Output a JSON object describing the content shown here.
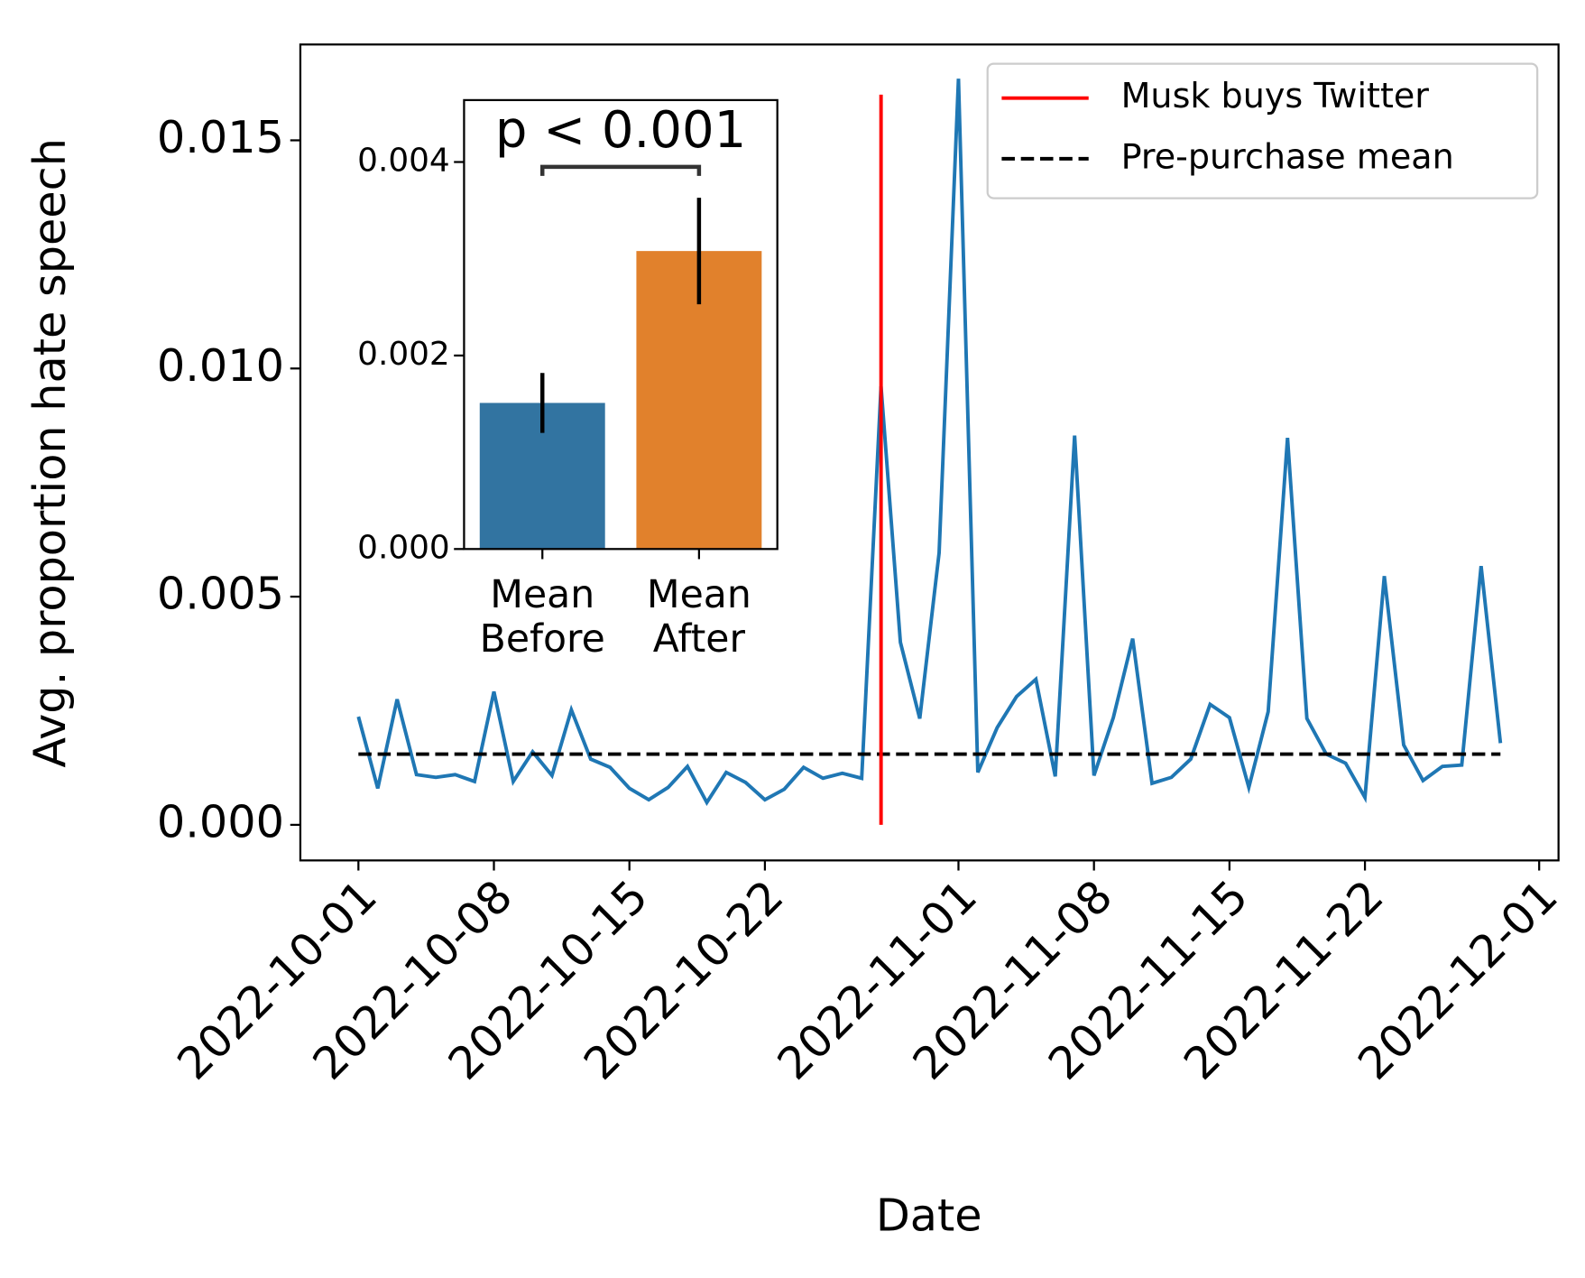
{
  "chart_data": [
    {
      "type": "line",
      "x_label": "Date",
      "y_label": "Avg. proportion hate speech",
      "x": [
        "2022-10-01",
        "2022-10-02",
        "2022-10-03",
        "2022-10-04",
        "2022-10-05",
        "2022-10-06",
        "2022-10-07",
        "2022-10-08",
        "2022-10-09",
        "2022-10-10",
        "2022-10-11",
        "2022-10-12",
        "2022-10-13",
        "2022-10-14",
        "2022-10-15",
        "2022-10-16",
        "2022-10-17",
        "2022-10-18",
        "2022-10-19",
        "2022-10-20",
        "2022-10-21",
        "2022-10-22",
        "2022-10-23",
        "2022-10-24",
        "2022-10-25",
        "2022-10-26",
        "2022-10-27",
        "2022-10-28",
        "2022-10-29",
        "2022-10-30",
        "2022-10-31",
        "2022-11-01",
        "2022-11-02",
        "2022-11-03",
        "2022-11-04",
        "2022-11-05",
        "2022-11-06",
        "2022-11-07",
        "2022-11-08",
        "2022-11-09",
        "2022-11-10",
        "2022-11-11",
        "2022-11-12",
        "2022-11-13",
        "2022-11-14",
        "2022-11-15",
        "2022-11-16",
        "2022-11-17",
        "2022-11-18",
        "2022-11-19",
        "2022-11-20",
        "2022-11-21",
        "2022-11-22",
        "2022-11-23",
        "2022-11-24",
        "2022-11-25",
        "2022-11-26",
        "2022-11-27",
        "2022-11-28",
        "2022-11-29"
      ],
      "series": [
        {
          "color": "#1f77b4",
          "values": [
            0.00237,
            0.0008,
            0.00275,
            0.0011,
            0.00104,
            0.0011,
            0.00095,
            0.00292,
            0.00095,
            0.0016,
            0.00108,
            0.00252,
            0.00144,
            0.00126,
            0.0008,
            0.00055,
            0.00082,
            0.00128,
            0.00049,
            0.00115,
            0.00093,
            0.00055,
            0.00078,
            0.00126,
            0.00102,
            0.00113,
            0.00102,
            0.00961,
            0.004,
            0.00233,
            0.00596,
            0.01635,
            0.00115,
            0.00213,
            0.00281,
            0.00319,
            0.00106,
            0.00853,
            0.00108,
            0.00235,
            0.00408,
            0.00091,
            0.00104,
            0.00144,
            0.00264,
            0.00235,
            0.00082,
            0.00248,
            0.00848,
            0.00233,
            0.00155,
            0.00135,
            0.0006,
            0.00545,
            0.00175,
            0.00097,
            0.00128,
            0.00131,
            0.00567,
            0.00179
          ]
        }
      ],
      "vline": {
        "label": "Musk buys Twitter",
        "x": "2022-10-28",
        "y": [
          0,
          0.016
        ],
        "color": "#ff0000"
      },
      "hline": {
        "label": "Pre-purchase mean",
        "y": 0.00155,
        "x": [
          "2022-10-01",
          "2022-11-29"
        ],
        "color": "#000000"
      },
      "legend": "upper right",
      "xlim": [
        "2022-09-28",
        "2022-12-02"
      ],
      "xticks": [
        "2022-10-01",
        "2022-10-08",
        "2022-10-15",
        "2022-10-22",
        "2022-11-01",
        "2022-11-08",
        "2022-11-15",
        "2022-11-22",
        "2022-12-01"
      ],
      "ylim": [
        -0.00078,
        0.0171
      ],
      "yticks": [
        {
          "value": 0,
          "label": "0.000"
        },
        {
          "value": 0.005,
          "label": "0.005"
        },
        {
          "value": 0.01,
          "label": "0.010"
        },
        {
          "value": 0.015,
          "label": "0.015"
        }
      ]
    },
    {
      "type": "bar",
      "categories": [
        "Mean\nBefore",
        "Mean\nAfter"
      ],
      "values": [
        0.00151,
        0.00308
      ],
      "errors": [
        0.00031,
        0.00055
      ],
      "colors": [
        "#3274a1",
        "#e1812c"
      ],
      "annotation": "p < 0.001",
      "ylim": [
        0,
        0.00464
      ],
      "yticks": [
        {
          "value": 0,
          "label": "0.000"
        },
        {
          "value": 0.002,
          "label": "0.002"
        },
        {
          "value": 0.004,
          "label": "0.004"
        }
      ]
    }
  ]
}
